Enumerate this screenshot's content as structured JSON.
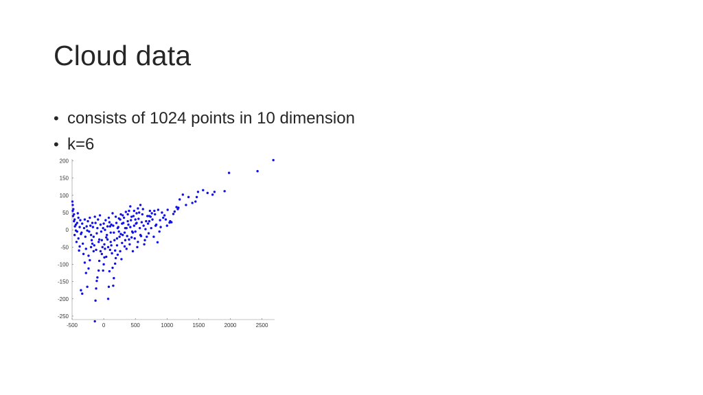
{
  "slide": {
    "title": "Cloud data",
    "bullets": [
      "consists of 1024 points in 10 dimension",
      "k=6"
    ]
  },
  "chart_data": {
    "type": "scatter",
    "title": "",
    "xlabel": "",
    "ylabel": "",
    "xlim": [
      -500,
      2700
    ],
    "ylim": [
      -260,
      205
    ],
    "xticks": [
      -500,
      0,
      500,
      1000,
      1500,
      2000,
      2500
    ],
    "yticks": [
      200,
      150,
      100,
      50,
      0,
      -50,
      -100,
      -150,
      -200,
      -250
    ],
    "marker_color": "#1010e6",
    "grid": false,
    "series": [
      {
        "points": [
          [
            2680,
            202
          ],
          [
            2430,
            170
          ],
          [
            1980,
            165
          ],
          [
            1910,
            112
          ],
          [
            1750,
            110
          ],
          [
            1720,
            102
          ],
          [
            1640,
            107
          ],
          [
            1570,
            115
          ],
          [
            1490,
            110
          ],
          [
            1470,
            95
          ],
          [
            1450,
            82
          ],
          [
            1400,
            78
          ],
          [
            1340,
            95
          ],
          [
            1300,
            72
          ],
          [
            1250,
            102
          ],
          [
            1200,
            88
          ],
          [
            1180,
            64
          ],
          [
            1170,
            60
          ],
          [
            1150,
            66
          ],
          [
            1100,
            46
          ],
          [
            1120,
            53
          ],
          [
            1070,
            22
          ],
          [
            1050,
            25
          ],
          [
            1040,
            21
          ],
          [
            940,
            35
          ],
          [
            960,
            42
          ],
          [
            900,
            8
          ],
          [
            880,
            -5
          ],
          [
            850,
            -36
          ],
          [
            820,
            12
          ],
          [
            800,
            55
          ],
          [
            760,
            48
          ],
          [
            740,
            38
          ],
          [
            720,
            25
          ],
          [
            700,
            18
          ],
          [
            690,
            40
          ],
          [
            660,
            2
          ],
          [
            620,
            60
          ],
          [
            580,
            72
          ],
          [
            540,
            62
          ],
          [
            520,
            48
          ],
          [
            500,
            30
          ],
          [
            480,
            12
          ],
          [
            460,
            -8
          ],
          [
            440,
            -22
          ],
          [
            420,
            68
          ],
          [
            400,
            55
          ],
          [
            380,
            25
          ],
          [
            360,
            5
          ],
          [
            340,
            -30
          ],
          [
            330,
            -48
          ],
          [
            300,
            42
          ],
          [
            290,
            18
          ],
          [
            270,
            -12
          ],
          [
            260,
            -62
          ],
          [
            240,
            33
          ],
          [
            220,
            5
          ],
          [
            210,
            -25
          ],
          [
            190,
            -82
          ],
          [
            180,
            -98
          ],
          [
            160,
            -140
          ],
          [
            150,
            -162
          ],
          [
            140,
            -110
          ],
          [
            120,
            15
          ],
          [
            110,
            -35
          ],
          [
            100,
            -58
          ],
          [
            90,
            -120
          ],
          [
            80,
            -165
          ],
          [
            70,
            -200
          ],
          [
            60,
            10
          ],
          [
            40,
            -22
          ],
          [
            20,
            -55
          ],
          [
            10,
            -80
          ],
          [
            0,
            -100
          ],
          [
            -10,
            -118
          ],
          [
            -30,
            -30
          ],
          [
            -50,
            -62
          ],
          [
            -70,
            -90
          ],
          [
            -80,
            -118
          ],
          [
            -100,
            -138
          ],
          [
            -110,
            -148
          ],
          [
            -120,
            -170
          ],
          [
            -130,
            -205
          ],
          [
            -140,
            -265
          ],
          [
            -160,
            -62
          ],
          [
            -180,
            -40
          ],
          [
            -200,
            -15
          ],
          [
            -220,
            -88
          ],
          [
            -240,
            -112
          ],
          [
            -260,
            -165
          ],
          [
            -280,
            -125
          ],
          [
            -300,
            -95
          ],
          [
            -320,
            -70
          ],
          [
            -340,
            -185
          ],
          [
            -360,
            -175
          ],
          [
            -380,
            -48
          ],
          [
            -400,
            -25
          ],
          [
            -420,
            -5
          ],
          [
            -440,
            15
          ],
          [
            -460,
            30
          ],
          [
            -470,
            45
          ],
          [
            -480,
            60
          ],
          [
            -490,
            72
          ],
          [
            -495,
            82
          ],
          [
            -490,
            55
          ],
          [
            -485,
            40
          ],
          [
            -470,
            25
          ],
          [
            -455,
            10
          ],
          [
            -440,
            -2
          ],
          [
            -420,
            20
          ],
          [
            -400,
            35
          ],
          [
            -380,
            8
          ],
          [
            -360,
            -12
          ],
          [
            -340,
            18
          ],
          [
            -310,
            5
          ],
          [
            -290,
            -20
          ],
          [
            -270,
            10
          ],
          [
            -250,
            25
          ],
          [
            -230,
            -5
          ],
          [
            -210,
            12
          ],
          [
            -190,
            -30
          ],
          [
            -170,
            8
          ],
          [
            -150,
            -45
          ],
          [
            -130,
            20
          ],
          [
            -110,
            -10
          ],
          [
            -90,
            30
          ],
          [
            -70,
            -28
          ],
          [
            -50,
            15
          ],
          [
            -30,
            -70
          ],
          [
            -10,
            5
          ],
          [
            10,
            -42
          ],
          [
            30,
            28
          ],
          [
            50,
            -15
          ],
          [
            70,
            -50
          ],
          [
            90,
            22
          ],
          [
            110,
            -8
          ],
          [
            130,
            -68
          ],
          [
            150,
            12
          ],
          [
            170,
            -30
          ],
          [
            190,
            38
          ],
          [
            210,
            -45
          ],
          [
            230,
            8
          ],
          [
            250,
            -20
          ],
          [
            270,
            45
          ],
          [
            290,
            -38
          ],
          [
            310,
            20
          ],
          [
            330,
            -8
          ],
          [
            350,
            52
          ],
          [
            370,
            -18
          ],
          [
            390,
            15
          ],
          [
            410,
            -42
          ],
          [
            430,
            28
          ],
          [
            450,
            -5
          ],
          [
            470,
            40
          ],
          [
            490,
            -25
          ],
          [
            510,
            18
          ],
          [
            530,
            -50
          ],
          [
            550,
            32
          ],
          [
            570,
            5
          ],
          [
            590,
            -18
          ],
          [
            610,
            45
          ],
          [
            630,
            12
          ],
          [
            650,
            -30
          ],
          [
            670,
            25
          ],
          [
            710,
            -10
          ],
          [
            730,
            55
          ],
          [
            750,
            5
          ],
          [
            770,
            30
          ],
          [
            790,
            -20
          ],
          [
            810,
            45
          ],
          [
            830,
            15
          ],
          [
            860,
            58
          ],
          [
            890,
            28
          ],
          [
            920,
            50
          ],
          [
            980,
            30
          ],
          [
            1000,
            12
          ],
          [
            1010,
            58
          ],
          [
            -460,
            -15
          ],
          [
            -430,
            -35
          ],
          [
            -410,
            48
          ],
          [
            -390,
            -60
          ],
          [
            -370,
            28
          ],
          [
            -350,
            -8
          ],
          [
            -330,
            -40
          ],
          [
            -300,
            30
          ],
          [
            -280,
            -55
          ],
          [
            -260,
            -2
          ],
          [
            -240,
            -75
          ],
          [
            -220,
            35
          ],
          [
            -200,
            -50
          ],
          [
            -180,
            20
          ],
          [
            -160,
            -20
          ],
          [
            -140,
            38
          ],
          [
            -120,
            -58
          ],
          [
            -100,
            5
          ],
          [
            -80,
            -35
          ],
          [
            -60,
            42
          ],
          [
            -40,
            -5
          ],
          [
            -20,
            -50
          ],
          [
            0,
            18
          ],
          [
            20,
            0
          ],
          [
            40,
            -78
          ],
          [
            60,
            -28
          ],
          [
            80,
            35
          ],
          [
            100,
            10
          ],
          [
            120,
            -45
          ],
          [
            140,
            48
          ],
          [
            160,
            -8
          ],
          [
            180,
            -60
          ],
          [
            200,
            20
          ],
          [
            220,
            -72
          ],
          [
            240,
            -5
          ],
          [
            260,
            30
          ],
          [
            280,
            -85
          ],
          [
            300,
            -15
          ],
          [
            320,
            35
          ],
          [
            340,
            5
          ],
          [
            360,
            -55
          ],
          [
            380,
            45
          ],
          [
            400,
            -28
          ],
          [
            420,
            8
          ],
          [
            440,
            38
          ],
          [
            460,
            -62
          ],
          [
            480,
            55
          ],
          [
            500,
            -5
          ],
          [
            520,
            20
          ],
          [
            540,
            -35
          ],
          [
            560,
            50
          ],
          [
            580,
            -15
          ],
          [
            600,
            22
          ],
          [
            640,
            -42
          ],
          [
            680,
            -20
          ],
          [
            720,
            40
          ]
        ]
      }
    ]
  }
}
